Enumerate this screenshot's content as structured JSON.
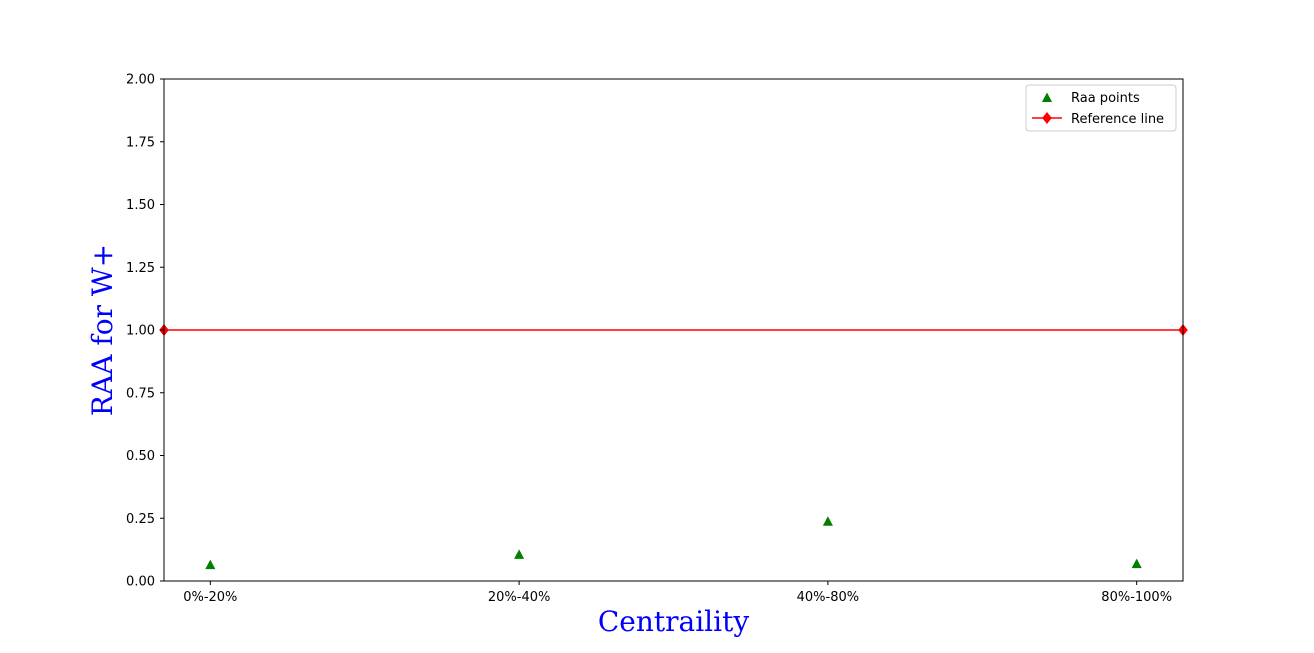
{
  "chart_data": {
    "type": "scatter",
    "categories": [
      "0%-20%",
      "20%-40%",
      "40%-80%",
      "80%-100%"
    ],
    "series": [
      {
        "name": "Raa points",
        "values": [
          0.063,
          0.104,
          0.236,
          0.067
        ],
        "color": "#008000",
        "marker": "triangle-up"
      },
      {
        "name": "Reference line",
        "x": [
          -0.15,
          3.15
        ],
        "values": [
          1.0,
          1.0
        ],
        "color": "#ff0000",
        "marker": "diamond",
        "line": true
      }
    ],
    "xlabel": "Centraility",
    "ylabel": "RAA for W+",
    "axis_label_color": "#0000ff",
    "ylim": [
      0,
      2.0
    ],
    "xlim": [
      -0.15,
      3.15
    ],
    "yticks": [
      0.0,
      0.25,
      0.5,
      0.75,
      1.0,
      1.25,
      1.5,
      1.75,
      2.0
    ],
    "ytick_labels": [
      "0.00",
      "0.25",
      "0.50",
      "0.75",
      "1.00",
      "1.25",
      "1.50",
      "1.75",
      "2.00"
    ],
    "grid": false,
    "legend_position": "top-right"
  }
}
